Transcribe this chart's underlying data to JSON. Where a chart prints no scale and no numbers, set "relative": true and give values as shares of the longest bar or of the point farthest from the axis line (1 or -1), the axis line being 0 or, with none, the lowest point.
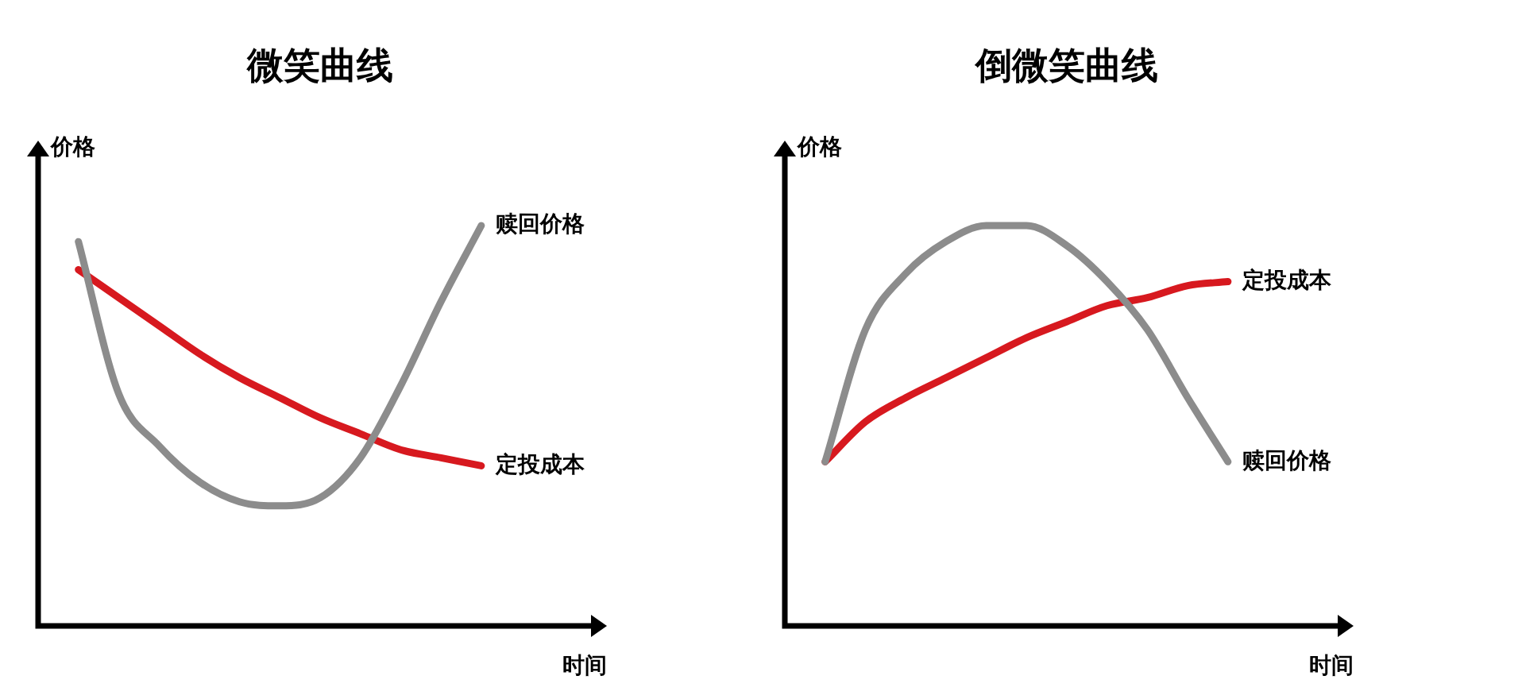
{
  "chart_data": [
    {
      "type": "line",
      "title": "微笑曲线",
      "ylabel": "价格",
      "xlabel": "时间",
      "relative": true,
      "marker": "none",
      "categories": [
        null,
        null,
        null,
        null,
        null,
        null,
        null,
        null,
        null,
        null,
        null,
        null,
        null,
        null,
        null
      ],
      "series": [
        {
          "name": "赎回价格",
          "color": "#8c8c8c",
          "values": [
            null,
            0.96,
            0.58,
            0.45,
            0.36,
            0.31,
            0.3,
            0.32,
            0.42,
            0.6,
            0.81,
            1,
            null,
            null,
            null
          ]
        },
        {
          "name": "定投成本",
          "color": "#d7191f",
          "values": [
            null,
            0.89,
            0.82,
            0.75,
            0.68,
            0.62,
            0.57,
            0.52,
            0.48,
            0.44,
            0.42,
            0.4,
            null,
            null,
            null
          ]
        }
      ]
    },
    {
      "type": "line",
      "title": "倒微笑曲线",
      "ylabel": "价格",
      "xlabel": "时间",
      "relative": true,
      "marker": "none",
      "categories": [
        null,
        null,
        null,
        null,
        null,
        null,
        null,
        null,
        null,
        null,
        null,
        null,
        null,
        null,
        null
      ],
      "series": [
        {
          "name": "赎回价格",
          "color": "#8c8c8c",
          "values": [
            null,
            0.41,
            0.74,
            0.88,
            0.96,
            1,
            1,
            0.95,
            0.86,
            0.74,
            0.57,
            0.41,
            null,
            null,
            null
          ]
        },
        {
          "name": "定投成本",
          "color": "#d7191f",
          "values": [
            null,
            0.41,
            0.51,
            0.57,
            0.62,
            0.67,
            0.72,
            0.76,
            0.8,
            0.82,
            0.85,
            0.86,
            null,
            null,
            null
          ]
        }
      ]
    }
  ]
}
